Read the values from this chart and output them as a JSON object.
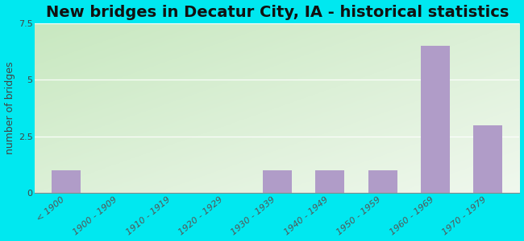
{
  "title": "New bridges in Decatur City, IA - historical statistics",
  "ylabel": "number of bridges",
  "categories": [
    "< 1900",
    "1900 - 1909",
    "1910 - 1919",
    "1920 - 1929",
    "1930 - 1939",
    "1940 - 1949",
    "1950 - 1959",
    "1960 - 1969",
    "1970 - 1979"
  ],
  "values": [
    1,
    0,
    0,
    0,
    1,
    1,
    1,
    6.5,
    3
  ],
  "bar_color": "#b09cc8",
  "ylim": [
    0,
    7.5
  ],
  "yticks": [
    0,
    2.5,
    5,
    7.5
  ],
  "background_outer": "#00e8f0",
  "bg_top_left": "#c8e8c0",
  "bg_bottom_right": "#f0f8ee",
  "title_fontsize": 14,
  "axis_label_fontsize": 9,
  "tick_label_fontsize": 8
}
